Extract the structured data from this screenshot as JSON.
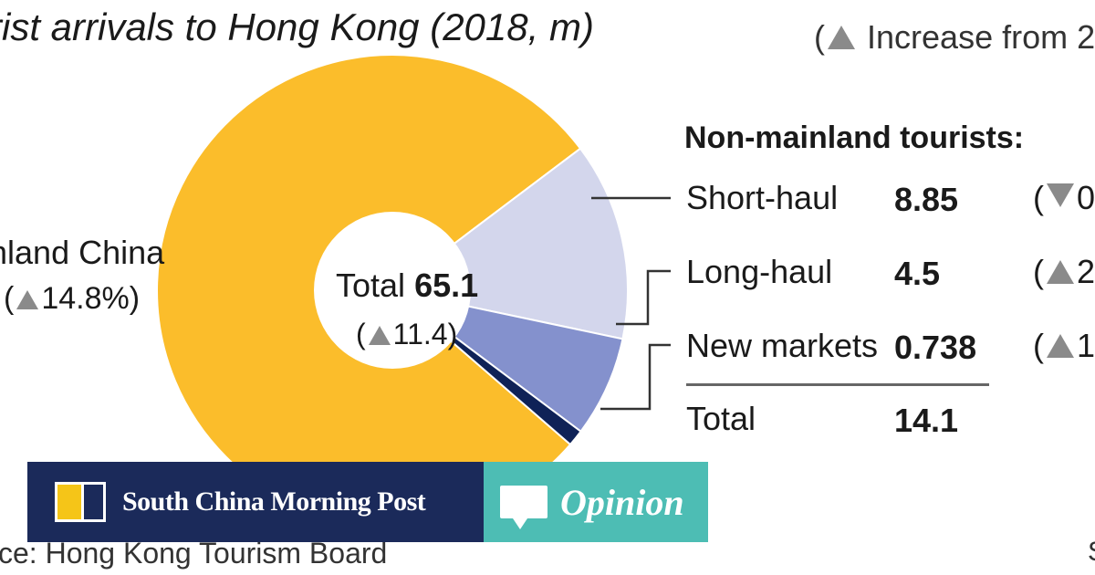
{
  "title": "rist arrivals to Hong Kong (2018, m)",
  "legend_text": "Increase from 2",
  "colors": {
    "mainland": "#fbbd2b",
    "short_haul": "#d3d6ec",
    "long_haul": "#8491cd",
    "new_markets": "#0f2257",
    "brand_navy": "#1b2a5a",
    "opinion_teal": "#4dbdb4"
  },
  "chart_data": {
    "type": "pie",
    "title": "rist arrivals to Hong Kong (2018, m)",
    "unit": "m",
    "slices": [
      {
        "label": "nland China",
        "value": 51.0,
        "change": "14.8%",
        "change_dir": "up"
      },
      {
        "label": "Short-haul",
        "value": 8.85,
        "change": "0",
        "change_dir": "down"
      },
      {
        "label": "Long-haul",
        "value": 4.5,
        "change": "2",
        "change_dir": "up"
      },
      {
        "label": "New markets",
        "value": 0.738,
        "change": "1.",
        "change_dir": "up"
      }
    ],
    "center": {
      "label": "Total",
      "value": "65.1",
      "change": "11.4",
      "change_dir": "up"
    },
    "non_mainland": {
      "heading": "Non-mainland tourists:",
      "total_label": "Total",
      "total_value": "14.1"
    }
  },
  "rows": [
    {
      "label": "Short-haul",
      "value": "8.85",
      "change": "0",
      "dir": "down"
    },
    {
      "label": "Long-haul",
      "value": "4.5",
      "change": "2",
      "dir": "up"
    },
    {
      "label": "New markets",
      "value": "0.738",
      "change": "1.",
      "dir": "up"
    }
  ],
  "source": "ce: Hong Kong Tourism Board",
  "edge_right_char": "S",
  "banner": {
    "brand_name": "South China Morning Post",
    "opinion_label": "Opinion"
  }
}
